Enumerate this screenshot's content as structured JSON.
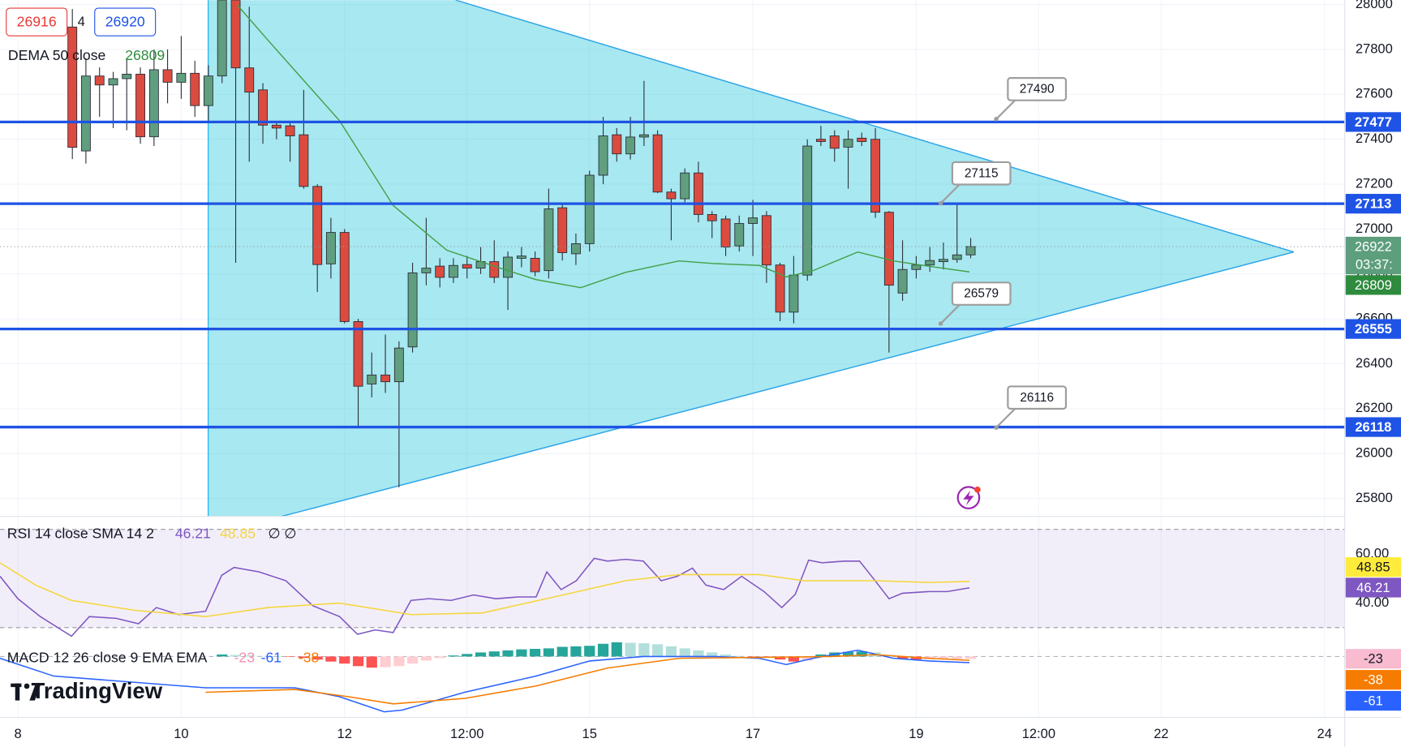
{
  "chart_data": [
    {
      "type": "candlestick",
      "x": [
        8.667,
        8.833,
        9,
        9.167,
        9.333,
        9.5,
        9.667,
        9.833,
        10,
        10.167,
        10.333,
        10.5,
        10.667,
        10.833,
        11,
        11.167,
        11.333,
        11.5,
        11.667,
        11.833,
        12,
        12.167,
        12.333,
        12.5,
        12.667,
        12.833,
        13,
        13.167,
        13.333,
        13.5,
        13.667,
        13.833,
        14,
        14.167,
        14.333,
        14.5,
        14.667,
        14.833,
        15,
        15.167,
        15.333,
        15.5,
        15.667,
        15.833,
        16,
        16.167,
        16.333,
        16.5,
        16.667,
        16.833,
        17,
        17.167,
        17.333,
        17.5,
        17.667,
        17.833,
        18,
        18.167,
        18.333,
        18.5,
        18.667,
        18.833,
        19,
        19.167,
        19.333,
        19.5,
        19.667
      ],
      "open": [
        27900,
        27348,
        27682,
        27642,
        27670,
        27690,
        27411,
        27710,
        27654,
        27694,
        27550,
        27682,
        28020,
        27718,
        27620,
        27463,
        27460,
        27420,
        27190,
        26845,
        26985,
        26588,
        26310,
        26350,
        26320,
        26475,
        26805,
        26835,
        26785,
        26842,
        26826,
        26855,
        26785,
        26870,
        26870,
        26815,
        27095,
        26890,
        26935,
        27240,
        27420,
        27335,
        27410,
        27420,
        27165,
        27135,
        27250,
        27065,
        27045,
        26925,
        27025,
        27060,
        26840,
        26630,
        26795,
        27400,
        27415,
        27365,
        27405,
        27400,
        27075,
        26715,
        26820,
        26840,
        26855,
        26865,
        26885
      ],
      "high": [
        27980,
        27761,
        27720,
        27700,
        27760,
        27720,
        27800,
        27800,
        27860,
        27750,
        27730,
        28100,
        28050,
        27990,
        27650,
        27480,
        27480,
        27620,
        27200,
        27050,
        27000,
        26600,
        26450,
        26530,
        26500,
        26850,
        27050,
        26870,
        26870,
        26880,
        26920,
        26950,
        26900,
        26920,
        26900,
        27180,
        27110,
        26980,
        27260,
        27500,
        27450,
        27500,
        27660,
        27440,
        27180,
        27270,
        27300,
        27080,
        27060,
        27060,
        27130,
        27080,
        26850,
        26880,
        27400,
        27460,
        27440,
        27440,
        27430,
        27450,
        27080,
        26950,
        26880,
        26920,
        26940,
        27115,
        26960
      ],
      "low": [
        27312,
        27292,
        27500,
        27450,
        27440,
        27380,
        27370,
        27560,
        27580,
        27500,
        27480,
        27650,
        26850,
        27300,
        27380,
        27400,
        27300,
        27180,
        26720,
        26780,
        26580,
        26120,
        26250,
        26270,
        25850,
        26450,
        26750,
        26740,
        26760,
        26780,
        26800,
        26760,
        26640,
        26830,
        26790,
        26780,
        26860,
        26840,
        26900,
        27200,
        27300,
        27310,
        27370,
        27160,
        26950,
        27120,
        27030,
        26960,
        26880,
        26900,
        26880,
        26760,
        26590,
        26580,
        26770,
        27370,
        27300,
        27180,
        27370,
        27050,
        26450,
        26680,
        26780,
        26810,
        26820,
        26850,
        26870
      ],
      "close": [
        27364,
        27682,
        27642,
        27670,
        27690,
        27411,
        27710,
        27654,
        27694,
        27550,
        27682,
        28020,
        27718,
        27610,
        27463,
        27450,
        27415,
        27190,
        26842,
        26985,
        26588,
        26300,
        26350,
        26320,
        26470,
        26805,
        26826,
        26785,
        26838,
        26826,
        26855,
        26785,
        26875,
        26880,
        26810,
        27090,
        26895,
        26935,
        27240,
        27415,
        27335,
        27410,
        27420,
        27165,
        27135,
        27250,
        27065,
        27037,
        26920,
        27025,
        27050,
        26840,
        26630,
        26795,
        27370,
        27390,
        27360,
        27400,
        27390,
        27075,
        26750,
        26820,
        26840,
        26860,
        26865,
        26885,
        26922
      ],
      "up_color": "#5f9e7e",
      "down_color": "#dc4b3f",
      "outline_color": "#2a2e39",
      "xlim": [
        7.781,
        24.247
      ],
      "xticks": [
        8,
        10,
        12,
        {
          "value": 13.5,
          "label": "12:00"
        },
        15,
        17,
        19,
        {
          "value": 20.5,
          "label": "12:00"
        },
        22,
        24
      ],
      "ylim": [
        25720,
        28020
      ],
      "yticks": [
        28000,
        27800,
        27600,
        27400,
        27200,
        27000,
        26800,
        26600,
        26400,
        26200,
        26000,
        25800
      ],
      "grid": true,
      "dema": {
        "label": "DEMA 50 close",
        "color": "#43a047",
        "label_color": "#2e8b3e",
        "x": [
          10.681,
          11.063,
          11.501,
          11.939,
          12.595,
          13.252,
          13.908,
          14.346,
          14.893,
          15.44,
          16.096,
          16.534,
          17.081,
          17.409,
          17.737,
          18.284,
          18.722,
          19.16,
          19.652
        ],
        "values": [
          28000,
          27841,
          27662,
          27483,
          27105,
          26906,
          26826,
          26775,
          26739,
          26807,
          26858,
          26846,
          26838,
          26787,
          26815,
          26898,
          26858,
          26834,
          26809
        ]
      },
      "levels": {
        "color": "#1e53e5",
        "values": [
          27477,
          27113,
          26555,
          26118
        ]
      },
      "callouts": [
        {
          "value": 27490,
          "x": 19.98
        },
        {
          "value": 27115,
          "x": 19.3
        },
        {
          "value": 26579,
          "x": 19.3
        },
        {
          "value": 26116,
          "x": 19.98
        }
      ],
      "last": 26922,
      "countdown": "03:37:",
      "last_color": "#5d9e7d"
    },
    {
      "type": "rsi",
      "label": "RSI 14 close SMA 14 2",
      "flags": [
        "∅",
        "∅"
      ],
      "ylim": [
        23.64,
        75.27
      ],
      "band": [
        70,
        30
      ],
      "band_color": "rgba(126,87,194,0.10)",
      "yticks": [
        {
          "value": 60,
          "label": "60.00"
        },
        {
          "value": 40,
          "label": "40.00"
        }
      ],
      "series": [
        {
          "color": "#7e57c2",
          "x": [
            7.781,
            8.0,
            8.274,
            8.656,
            8.875,
            9.204,
            9.477,
            9.696,
            9.969,
            10.298,
            10.495,
            10.648,
            10.954,
            11.282,
            11.611,
            11.939,
            12.158,
            12.376,
            12.595,
            12.814,
            13.033,
            13.306,
            13.58,
            13.853,
            14.127,
            14.346,
            14.477,
            14.652,
            14.838,
            15.057,
            15.221,
            15.44,
            15.658,
            15.877,
            16.074,
            16.26,
            16.425,
            16.643,
            16.862,
            17.136,
            17.354,
            17.519,
            17.683,
            17.847,
            18.12,
            18.306,
            18.481,
            18.667,
            18.832,
            19.16,
            19.379,
            19.652
          ],
          "values": [
            50.9,
            41.8,
            34.5,
            26.5,
            34.5,
            33.8,
            31.6,
            38.2,
            35.3,
            36.7,
            51.3,
            54.5,
            52.7,
            49.1,
            38.9,
            34.5,
            27.3,
            29.1,
            28.0,
            41.1,
            41.8,
            41.1,
            43.3,
            41.8,
            42.5,
            42.5,
            52.7,
            45.5,
            49.1,
            58.2,
            57.1,
            57.8,
            57.1,
            49.1,
            50.9,
            54.2,
            47.3,
            45.5,
            50.9,
            44.7,
            38.2,
            43.6,
            57.5,
            56.4,
            57.1,
            57.1,
            49.8,
            41.8,
            44.0,
            44.7,
            44.7,
            46.21
          ],
          "label_color": "#7e57c2",
          "text_color": "#ffffff"
        },
        {
          "color": "#f5d63b",
          "x": [
            7.781,
            8.219,
            8.656,
            9.422,
            10.298,
            11.063,
            11.939,
            12.814,
            13.689,
            14.565,
            15.44,
            16.096,
            17.081,
            17.628,
            18.503,
            19.16,
            19.652
          ],
          "values": [
            56.4,
            47.3,
            41.1,
            37.1,
            34.5,
            38.2,
            40.0,
            35.3,
            36.0,
            42.5,
            49.1,
            51.6,
            51.6,
            49.1,
            49.1,
            48.4,
            48.85
          ],
          "label_color": "#ffeb3b",
          "text_color": "#131722"
        }
      ]
    },
    {
      "type": "macd",
      "label": "MACD 12 26 close 9 EMA EMA",
      "ylim": [
        -600,
        174
      ],
      "hist": {
        "values": [
          null,
          null,
          null,
          null,
          null,
          null,
          null,
          null,
          null,
          null,
          null,
          20,
          15,
          10,
          5,
          2,
          -5,
          -15,
          -30,
          -50,
          -70,
          -95,
          -110,
          -105,
          -95,
          -70,
          -40,
          -15,
          10,
          25,
          40,
          50,
          60,
          70,
          75,
          80,
          95,
          100,
          105,
          125,
          140,
          135,
          130,
          120,
          100,
          80,
          60,
          40,
          20,
          5,
          -5,
          -10,
          -30,
          -50,
          -40,
          20,
          40,
          45,
          50,
          40,
          15,
          -20,
          -30,
          -28,
          -26,
          -24,
          -23
        ],
        "colors": [
          "#26a69a",
          "#b2dfdb",
          "#ff5252",
          "#ffcdd2"
        ],
        "label_color": "#f8bbd0",
        "header_color": "#f48fb1",
        "text_color": "#131722"
      },
      "series": [
        {
          "color": "#2962ff",
          "label_color": "#2962ff",
          "text_color": "#ffffff",
          "x": [
            7.781,
            8.438,
            10.298,
            11.392,
            11.939,
            12.486,
            12.705,
            13.47,
            14.346,
            15.002,
            15.658,
            16.534,
            17.081,
            17.409,
            17.737,
            18.284,
            18.722,
            19.16,
            19.652
          ],
          "values": [
            -18,
            -193,
            -308,
            -308,
            -396,
            -545,
            -528,
            -352,
            -193,
            -44,
            0,
            0,
            -18,
            -79,
            -18,
            62,
            -18,
            -44,
            -61
          ]
        },
        {
          "color": "#f57c00",
          "label_color": "#f57c00",
          "text_color": "#ffffff",
          "x": [
            10.298,
            11.392,
            12.048,
            12.595,
            13.47,
            14.346,
            15.221,
            16.096,
            17.081,
            17.956,
            18.503,
            19.16,
            19.652
          ],
          "values": [
            -352,
            -325,
            -396,
            -466,
            -413,
            -290,
            -114,
            -18,
            -9,
            0,
            18,
            -18,
            -38
          ]
        }
      ]
    }
  ],
  "quote": {
    "bid": 26916,
    "spread": 4,
    "ask": 26920
  },
  "logo": "TradingView"
}
